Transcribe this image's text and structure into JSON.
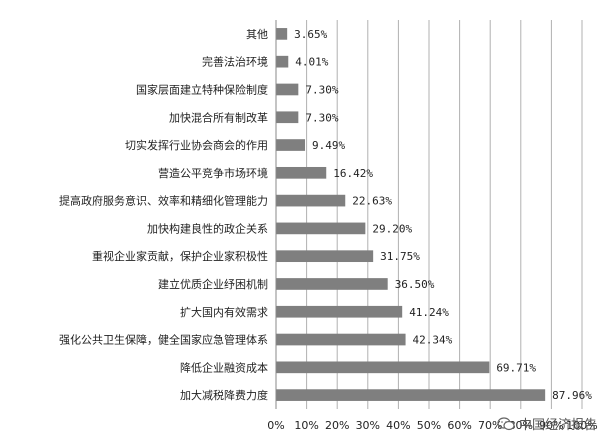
{
  "chart_data": {
    "type": "bar",
    "orientation": "horizontal",
    "categories": [
      "其他",
      "完善法治环境",
      "国家层面建立特种保险制度",
      "加快混合所有制改革",
      "切实发挥行业协会商会的作用",
      "营造公平竞争市场环境",
      "提高政府服务意识、效率和精细化管理能力",
      "加快构建良性的政企关系",
      "重视企业家贡献，保护企业家积极性",
      "建立优质企业纾困机制",
      "扩大国内有效需求",
      "强化公共卫生保障，健全国家应急管理体系",
      "降低企业融资成本",
      "加大减税降费力度"
    ],
    "values": [
      3.65,
      4.01,
      7.3,
      7.3,
      9.49,
      16.42,
      22.63,
      29.2,
      31.75,
      36.5,
      41.24,
      42.34,
      69.71,
      87.96
    ],
    "value_labels": [
      "3.65%",
      "4.01%",
      "7.30%",
      "7.30%",
      "9.49%",
      "16.42%",
      "22.63%",
      "29.20%",
      "31.75%",
      "36.50%",
      "41.24%",
      "42.34%",
      "69.71%",
      "87.96%"
    ],
    "xlim": [
      0,
      100
    ],
    "x_ticks": [
      "0%",
      "10%",
      "20%",
      "30%",
      "40%",
      "50%",
      "60%",
      "70%",
      "80%",
      "90%",
      "100%"
    ],
    "grid": true,
    "bar_color": "#7f7f7f",
    "grid_color": "#b0b0b0",
    "title": "",
    "xlabel": "",
    "ylabel": ""
  },
  "watermark": {
    "text": "中国经济报告",
    "icon": "wechat-icon"
  }
}
